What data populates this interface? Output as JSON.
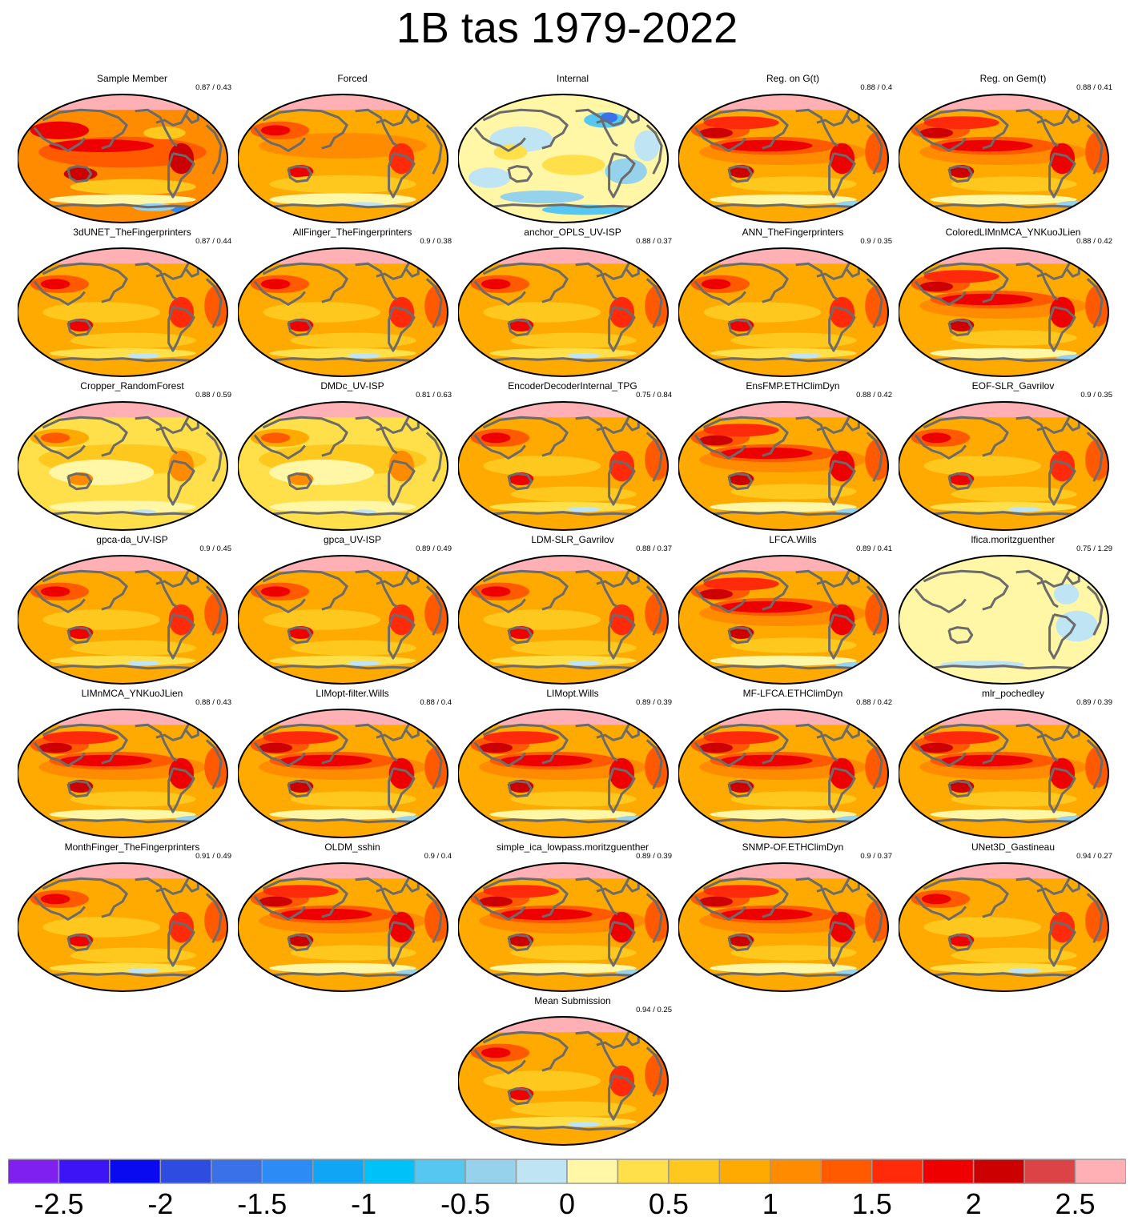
{
  "title": "1B tas 1979-2022",
  "chart_data": {
    "type": "heatmap",
    "title": "1B tas 1979-2022",
    "description_of_panels": "map panels",
    "panels": [
      {
        "name": "Sample Member",
        "score": "0.87 / 0.43",
        "pattern": "sample"
      },
      {
        "name": "Forced",
        "score": "",
        "pattern": "forced"
      },
      {
        "name": "Internal",
        "score": "",
        "pattern": "internal"
      },
      {
        "name": "Reg. on G(t)",
        "score": "0.88 / 0.4",
        "pattern": "strong"
      },
      {
        "name": "Reg. on Gem(t)",
        "score": "0.88 / 0.41",
        "pattern": "strong"
      },
      {
        "name": "3dUNET_TheFingerprinters",
        "score": "0.87 / 0.44",
        "pattern": "normal"
      },
      {
        "name": "AllFinger_TheFingerprinters",
        "score": "0.9 / 0.38",
        "pattern": "normal"
      },
      {
        "name": "anchor_OPLS_UV-ISP",
        "score": "0.88 / 0.37",
        "pattern": "normal"
      },
      {
        "name": "ANN_TheFingerprinters",
        "score": "0.9 / 0.35",
        "pattern": "normal"
      },
      {
        "name": "ColoredLIMnMCA_YNKuoJLien",
        "score": "0.88 / 0.42",
        "pattern": "strong"
      },
      {
        "name": "Cropper_RandomForest",
        "score": "0.88 / 0.59",
        "pattern": "weak"
      },
      {
        "name": "DMDc_UV-ISP",
        "score": "0.81 / 0.63",
        "pattern": "weak"
      },
      {
        "name": "EncoderDecoderInternal_TPG",
        "score": "0.75 / 0.84",
        "pattern": "normal"
      },
      {
        "name": "EnsFMP.ETHClimDyn",
        "score": "0.88 / 0.42",
        "pattern": "strong"
      },
      {
        "name": "EOF-SLR_Gavrilov",
        "score": "0.9 / 0.35",
        "pattern": "normal"
      },
      {
        "name": "gpca-da_UV-ISP",
        "score": "0.9 / 0.45",
        "pattern": "normal"
      },
      {
        "name": "gpca_UV-ISP",
        "score": "0.89 / 0.49",
        "pattern": "normal"
      },
      {
        "name": "LDM-SLR_Gavrilov",
        "score": "0.88 / 0.37",
        "pattern": "normal"
      },
      {
        "name": "LFCA.Wills",
        "score": "0.89 / 0.41",
        "pattern": "strong"
      },
      {
        "name": "lfica.moritzguenther",
        "score": "0.75 / 1.29",
        "pattern": "flat"
      },
      {
        "name": "LIMnMCA_YNKuoJLien",
        "score": "0.88 / 0.43",
        "pattern": "strong"
      },
      {
        "name": "LIMopt-filter.Wills",
        "score": "0.88 / 0.4",
        "pattern": "strong"
      },
      {
        "name": "LIMopt.Wills",
        "score": "0.89 / 0.39",
        "pattern": "strong"
      },
      {
        "name": "MF-LFCA.ETHClimDyn",
        "score": "0.88 / 0.42",
        "pattern": "strong"
      },
      {
        "name": "mlr_pochedley",
        "score": "0.89 / 0.39",
        "pattern": "strong"
      },
      {
        "name": "MonthFinger_TheFingerprinters",
        "score": "0.91 / 0.49",
        "pattern": "normal"
      },
      {
        "name": "OLDM_sshin",
        "score": "0.9 / 0.4",
        "pattern": "strong"
      },
      {
        "name": "simple_ica_lowpass.moritzguenther",
        "score": "0.89 / 0.39",
        "pattern": "strong"
      },
      {
        "name": "SNMP-OF.ETHClimDyn",
        "score": "0.9 / 0.37",
        "pattern": "strong"
      },
      {
        "name": "UNet3D_Gastineau",
        "score": "0.94 / 0.27",
        "pattern": "normal"
      },
      {
        "name": "Mean Submission",
        "score": "0.94 / 0.25",
        "pattern": "normal"
      }
    ],
    "colorbar": {
      "colors": [
        "#8020f0",
        "#3c14f5",
        "#0a0af0",
        "#2e4de0",
        "#3a70e8",
        "#2d8bf5",
        "#11a6f5",
        "#00c2f8",
        "#56c7f0",
        "#96d2ec",
        "#bfe4f4",
        "#fff6a6",
        "#ffe04a",
        "#ffc81e",
        "#ffaa00",
        "#ff8c00",
        "#ff5a00",
        "#ff2a0a",
        "#ee0000",
        "#cc0000",
        "#dc4346",
        "#ffb0b4"
      ],
      "min": -2.75,
      "max": 2.75,
      "step": 0.25,
      "tick_labels": [
        "-2.5",
        "-2",
        "-1.5",
        "-1",
        "-0.5",
        "0",
        "0.5",
        "1",
        "1.5",
        "2",
        "2.5"
      ]
    }
  }
}
